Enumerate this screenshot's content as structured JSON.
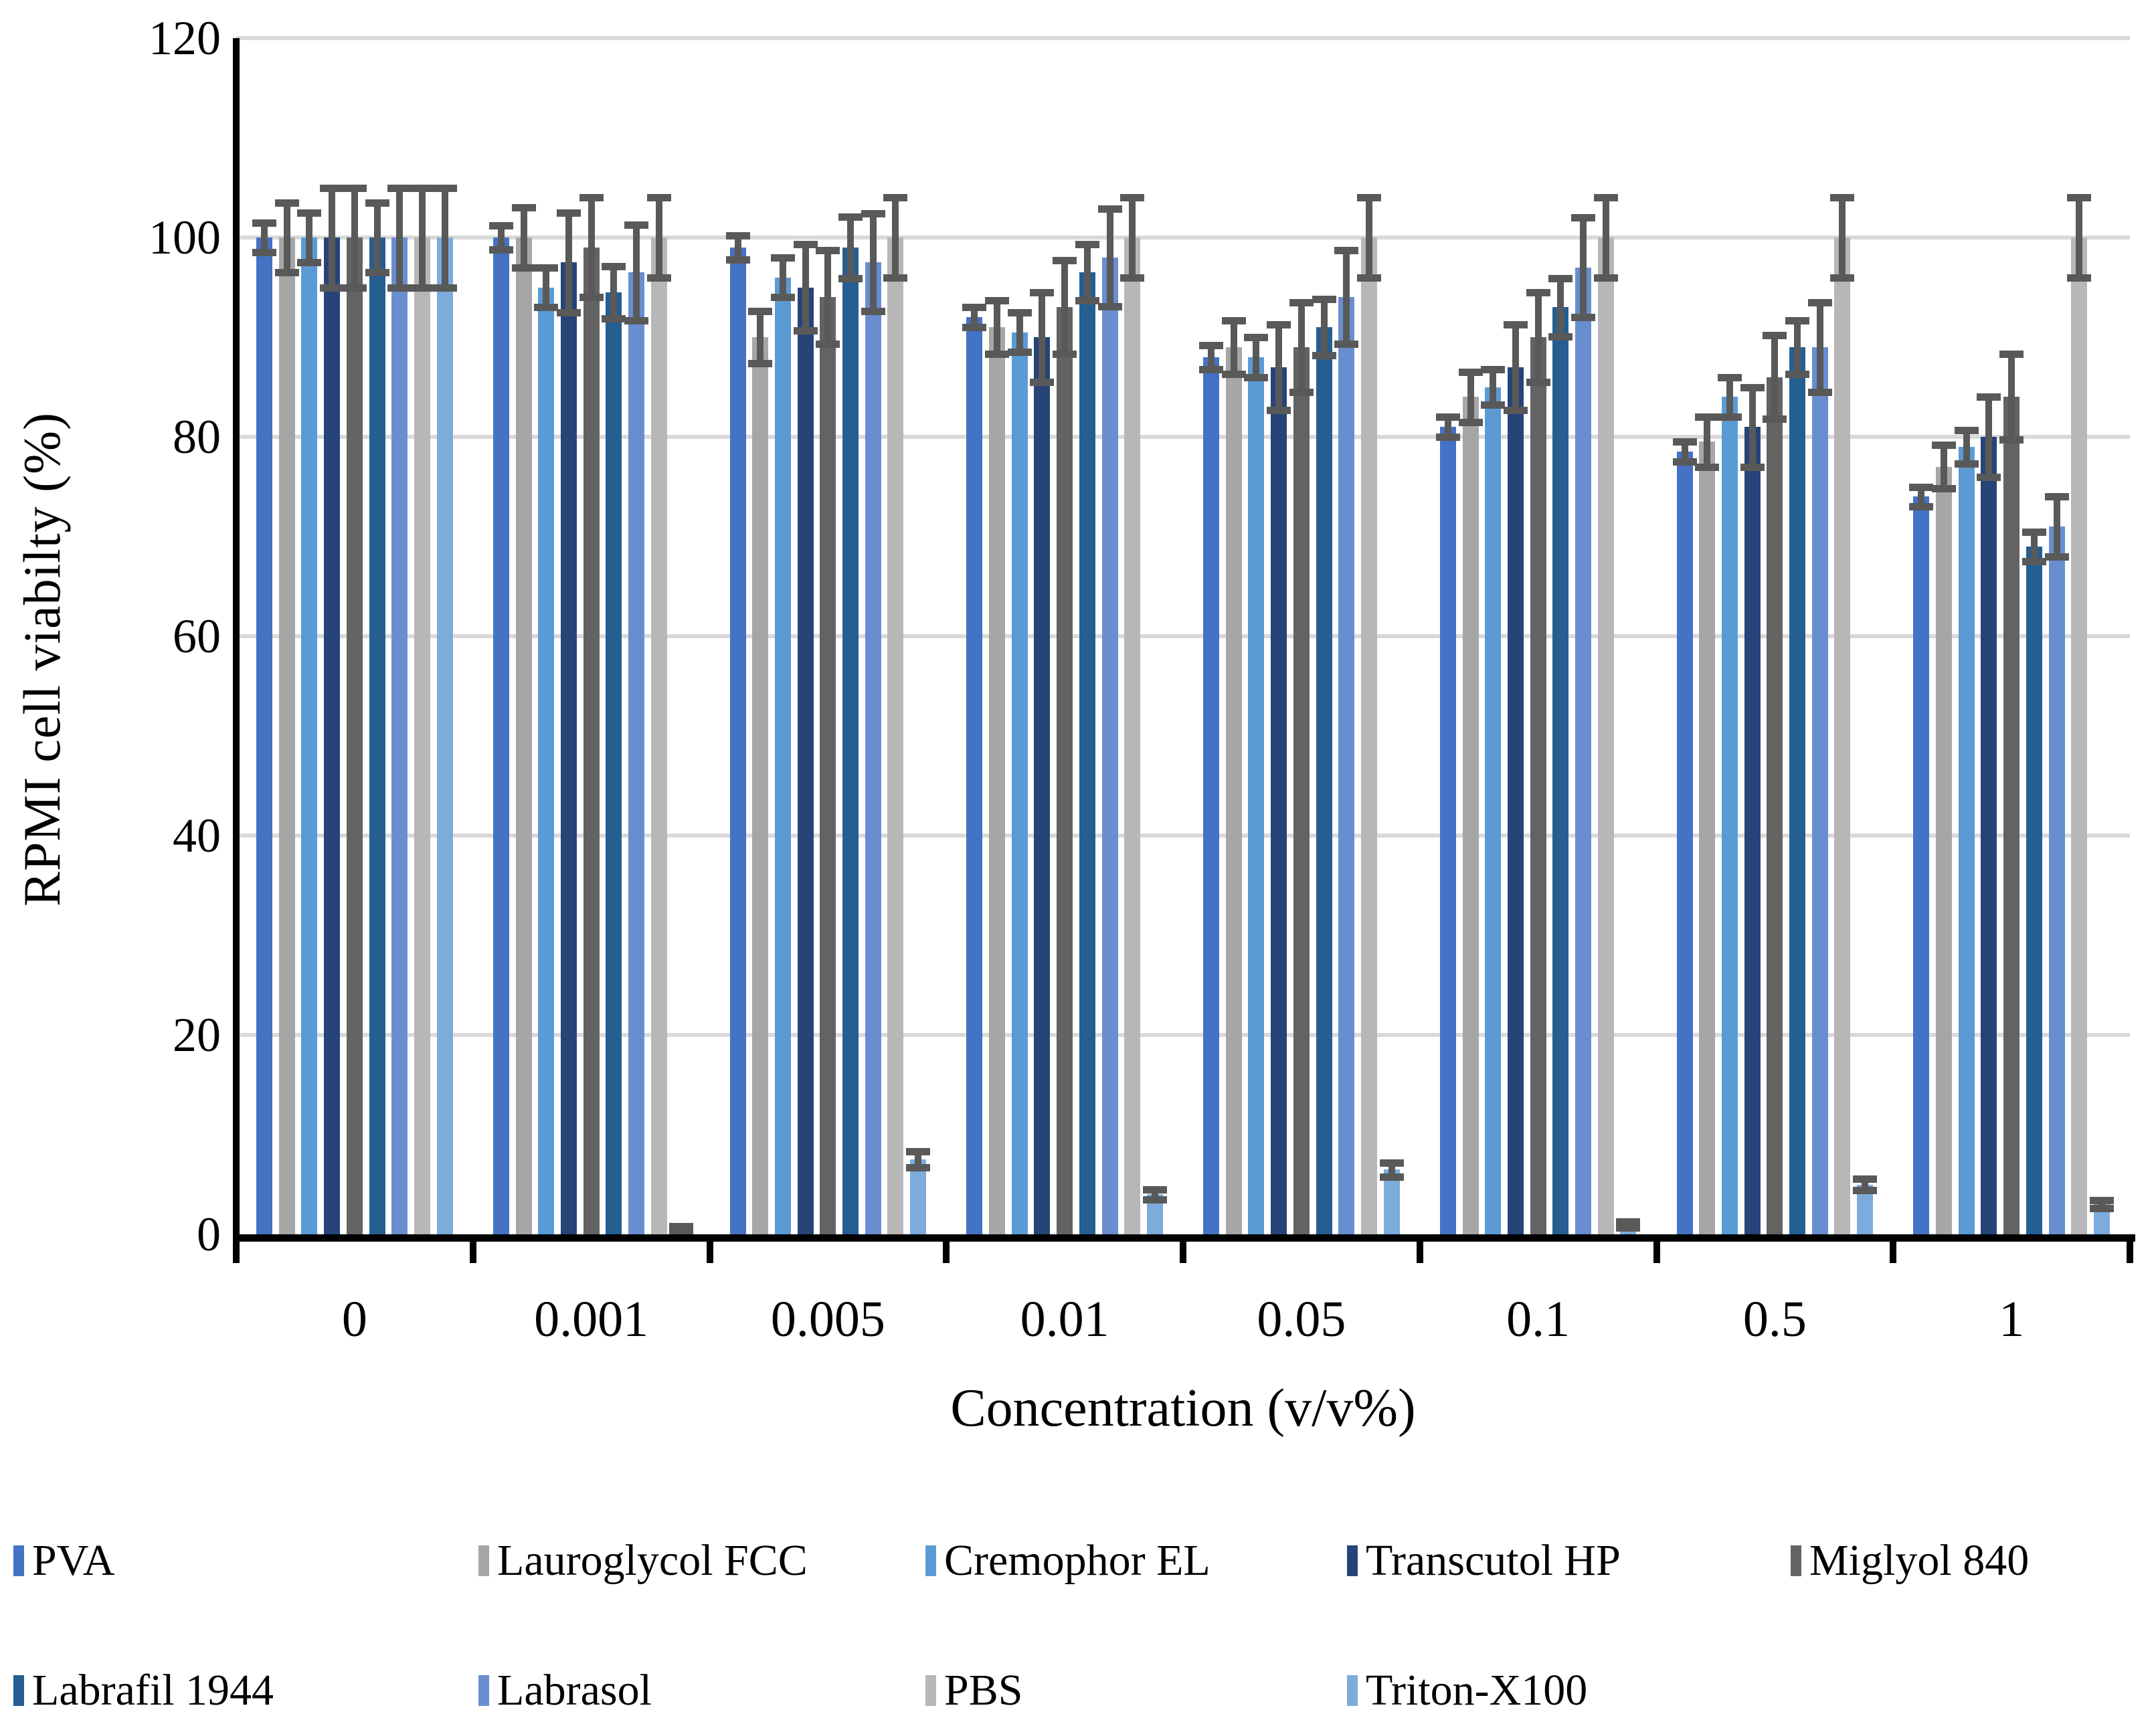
{
  "chart_data": {
    "type": "bar",
    "title": "",
    "xlabel": "Concentration (v/v%)",
    "ylabel": "RPMI cell viabilty (%)",
    "ylim": [
      0,
      120
    ],
    "yticks": [
      0,
      20,
      40,
      60,
      80,
      100,
      120
    ],
    "grid": true,
    "legend_position": "bottom",
    "error_bar_color": "#595959",
    "gridline_color": "#D9D9D9",
    "categories": [
      "0",
      "0.001",
      "0.005",
      "0.01",
      "0.05",
      "0.1",
      "0.5",
      "1"
    ],
    "series": [
      {
        "name": "PVA",
        "color": "#4472C4",
        "values": [
          100,
          100,
          99,
          92,
          88,
          81,
          78.5,
          74
        ],
        "errors": [
          1.5,
          1.2,
          1.2,
          1.0,
          1.2,
          1.0,
          1.0,
          1.0
        ]
      },
      {
        "name": "Lauroglycol FCC",
        "color": "#A6A6A6",
        "values": [
          100,
          100,
          90,
          91,
          89,
          84,
          79.5,
          77
        ],
        "errors": [
          3.5,
          3.0,
          2.6,
          2.7,
          2.7,
          2.5,
          2.5,
          2.2
        ]
      },
      {
        "name": "Cremophor EL",
        "color": "#5B9BD5",
        "values": [
          100,
          95,
          96,
          90.5,
          88,
          85,
          84,
          79
        ],
        "errors": [
          2.5,
          2.0,
          2.0,
          2.0,
          2.0,
          1.8,
          2.0,
          1.7
        ]
      },
      {
        "name": "Transcutol HP",
        "color": "#264478",
        "values": [
          100,
          97.5,
          95,
          90,
          87,
          87,
          81,
          80
        ],
        "errors": [
          5.0,
          5.0,
          4.3,
          4.5,
          4.3,
          4.3,
          4.0,
          4.0
        ]
      },
      {
        "name": "Miglyol 840",
        "color": "#636363",
        "values": [
          100,
          99,
          94,
          93,
          89,
          90,
          86,
          84
        ],
        "errors": [
          5.0,
          5.0,
          4.7,
          4.7,
          4.5,
          4.5,
          4.2,
          4.3
        ]
      },
      {
        "name": "Labrafil 1944",
        "color": "#255E91",
        "values": [
          100,
          94.5,
          99,
          96.5,
          91,
          93,
          89,
          69
        ],
        "errors": [
          3.5,
          2.6,
          3.1,
          2.8,
          2.8,
          2.9,
          2.7,
          1.5
        ]
      },
      {
        "name": "Labrasol",
        "color": "#698ED0",
        "values": [
          100,
          96.5,
          97.5,
          98,
          94,
          97,
          89,
          71
        ],
        "errors": [
          5.0,
          4.8,
          4.9,
          4.9,
          4.7,
          5.0,
          4.5,
          3.0
        ]
      },
      {
        "name": "PBS",
        "color": "#B7B7B7",
        "values": [
          100,
          100,
          100,
          100,
          100,
          100,
          100,
          100
        ],
        "errors": [
          5.0,
          4.0,
          4.0,
          4.0,
          4.0,
          4.0,
          4.0,
          4.0
        ]
      },
      {
        "name": "Triton-X100",
        "color": "#7CACDC",
        "values": [
          100,
          0.5,
          7.5,
          4,
          6.5,
          1,
          5,
          3
        ],
        "errors": [
          5.0,
          0.3,
          0.8,
          0.5,
          0.7,
          0.3,
          0.6,
          0.4
        ]
      }
    ]
  }
}
